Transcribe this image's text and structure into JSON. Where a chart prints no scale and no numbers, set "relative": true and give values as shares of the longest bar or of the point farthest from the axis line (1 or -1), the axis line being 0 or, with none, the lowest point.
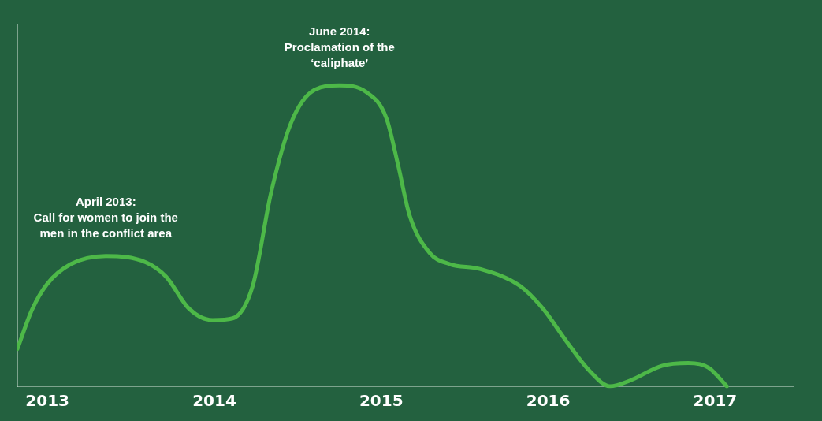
{
  "chart_data": {
    "type": "line",
    "relative": true,
    "x": [
      2012.82,
      2012.91,
      2013.0,
      2013.14,
      2013.35,
      2013.59,
      2013.71,
      2013.85,
      2013.99,
      2014.11,
      2014.23,
      2014.34,
      2014.46,
      2014.6,
      2014.75,
      2014.91,
      2015.03,
      2015.1,
      2015.17,
      2015.29,
      2015.41,
      2015.59,
      2015.83,
      2015.97,
      2016.11,
      2016.25,
      2016.37,
      2016.49,
      2016.68,
      2016.84,
      2016.96,
      2017.07
    ],
    "series": [
      {
        "color": "#4db848",
        "values": [
          0.124,
          0.257,
          0.341,
          0.406,
          0.433,
          0.412,
          0.365,
          0.257,
          0.22,
          0.226,
          0.334,
          0.644,
          0.876,
          0.985,
          1,
          0.978,
          0.892,
          0.737,
          0.567,
          0.443,
          0.406,
          0.39,
          0.334,
          0.257,
          0.149,
          0.05,
          0,
          0.019,
          0.068,
          0.077,
          0.062,
          0
        ]
      }
    ],
    "xlim": [
      2012.82,
      2017.47
    ],
    "xticks": [
      2013,
      2014,
      2015,
      2016,
      2017
    ],
    "grid": false,
    "legend": false,
    "marker": "none",
    "line_style": "solid",
    "annotations": [
      {
        "text": "April 2013:\nCall for women to join the\nmen in the conflict area",
        "x": 2013.35,
        "y": 0.433
      },
      {
        "text": "June 2014:\nProclamation of the\n‘caliphate’",
        "x": 2014.75,
        "y": 1
      }
    ]
  }
}
